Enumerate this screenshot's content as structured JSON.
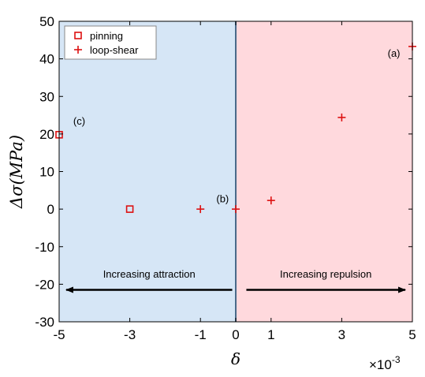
{
  "chart_data": {
    "type": "scatter",
    "xlabel": "δ",
    "ylabel_main": "Δσ",
    "ylabel_unit": "(MPa)",
    "x_multiplier_base": "×10",
    "x_multiplier_exp": "-3",
    "xlim": [
      -5,
      5
    ],
    "ylim": [
      -30,
      50
    ],
    "xticks": [
      -5,
      -3,
      -1,
      0,
      1,
      3,
      5
    ],
    "xtick_labels": [
      "-5",
      "-3",
      "-1",
      "0",
      "1",
      "3",
      "5"
    ],
    "yticks": [
      -30,
      -20,
      -10,
      0,
      10,
      20,
      30,
      40,
      50
    ],
    "ytick_labels": [
      "-30",
      "-20",
      "-10",
      "0",
      "10",
      "20",
      "30",
      "40",
      "50"
    ],
    "regions": [
      {
        "from": -5,
        "to": 0,
        "color": "#d6e6f6"
      },
      {
        "from": 0,
        "to": 5,
        "color": "#ffd9dd"
      }
    ],
    "legend": {
      "placement": "top-left",
      "entries": [
        "pinning",
        "loop-shear"
      ]
    },
    "series": [
      {
        "name": "pinning",
        "marker": "square",
        "color": "#dd1111",
        "points": [
          {
            "x": -5,
            "y": 19.8
          },
          {
            "x": -3,
            "y": 0
          }
        ]
      },
      {
        "name": "loop-shear",
        "marker": "plus",
        "color": "#dd1111",
        "points": [
          {
            "x": -1,
            "y": 0
          },
          {
            "x": 0,
            "y": 0
          },
          {
            "x": 1,
            "y": 2.3
          },
          {
            "x": 3,
            "y": 24.4
          },
          {
            "x": 5,
            "y": 43.3
          }
        ]
      }
    ],
    "annotations": [
      {
        "text": "(a)",
        "x": 4.3,
        "y": 40.5
      },
      {
        "text": "(b)",
        "x": -0.55,
        "y": 1.8
      },
      {
        "text": "(c)",
        "x": -4.6,
        "y": 22.5
      }
    ],
    "arrows": [
      {
        "text": "Increasing attraction",
        "from": -0.1,
        "to": -4.8,
        "y": -21.5,
        "text_y": -18.2
      },
      {
        "text": "Increasing repulsion",
        "from": 0.3,
        "to": 4.8,
        "y": -21.5,
        "text_y": -18.2
      }
    ],
    "colors": {
      "marker": "#dd1111",
      "axis": "#000000",
      "divider": "#4a6a8a"
    }
  }
}
